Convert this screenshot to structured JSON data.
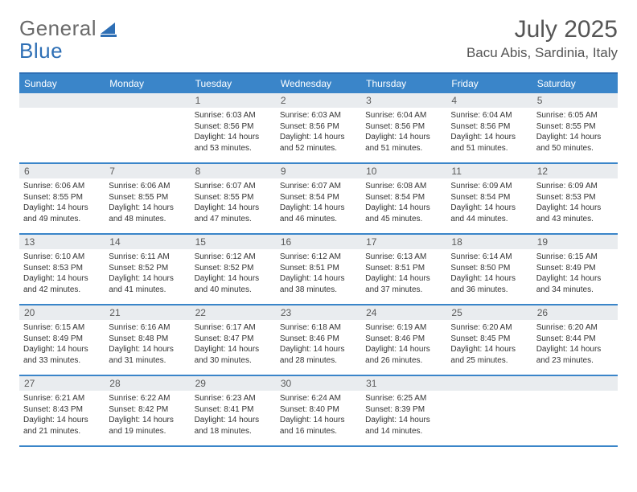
{
  "logo": {
    "word1": "General",
    "word2": "Blue"
  },
  "title": "July 2025",
  "location": "Bacu Abis, Sardinia, Italy",
  "colors": {
    "header_bar": "#3a85c9",
    "border": "#2e6fb5",
    "daynum_bg": "#e9ecef",
    "text": "#333333",
    "muted": "#555555"
  },
  "dow": [
    "Sunday",
    "Monday",
    "Tuesday",
    "Wednesday",
    "Thursday",
    "Friday",
    "Saturday"
  ],
  "weeks": [
    [
      {
        "n": "",
        "sr": "",
        "ss": "",
        "dl": ""
      },
      {
        "n": "",
        "sr": "",
        "ss": "",
        "dl": ""
      },
      {
        "n": "1",
        "sr": "Sunrise: 6:03 AM",
        "ss": "Sunset: 8:56 PM",
        "dl": "Daylight: 14 hours and 53 minutes."
      },
      {
        "n": "2",
        "sr": "Sunrise: 6:03 AM",
        "ss": "Sunset: 8:56 PM",
        "dl": "Daylight: 14 hours and 52 minutes."
      },
      {
        "n": "3",
        "sr": "Sunrise: 6:04 AM",
        "ss": "Sunset: 8:56 PM",
        "dl": "Daylight: 14 hours and 51 minutes."
      },
      {
        "n": "4",
        "sr": "Sunrise: 6:04 AM",
        "ss": "Sunset: 8:56 PM",
        "dl": "Daylight: 14 hours and 51 minutes."
      },
      {
        "n": "5",
        "sr": "Sunrise: 6:05 AM",
        "ss": "Sunset: 8:55 PM",
        "dl": "Daylight: 14 hours and 50 minutes."
      }
    ],
    [
      {
        "n": "6",
        "sr": "Sunrise: 6:06 AM",
        "ss": "Sunset: 8:55 PM",
        "dl": "Daylight: 14 hours and 49 minutes."
      },
      {
        "n": "7",
        "sr": "Sunrise: 6:06 AM",
        "ss": "Sunset: 8:55 PM",
        "dl": "Daylight: 14 hours and 48 minutes."
      },
      {
        "n": "8",
        "sr": "Sunrise: 6:07 AM",
        "ss": "Sunset: 8:55 PM",
        "dl": "Daylight: 14 hours and 47 minutes."
      },
      {
        "n": "9",
        "sr": "Sunrise: 6:07 AM",
        "ss": "Sunset: 8:54 PM",
        "dl": "Daylight: 14 hours and 46 minutes."
      },
      {
        "n": "10",
        "sr": "Sunrise: 6:08 AM",
        "ss": "Sunset: 8:54 PM",
        "dl": "Daylight: 14 hours and 45 minutes."
      },
      {
        "n": "11",
        "sr": "Sunrise: 6:09 AM",
        "ss": "Sunset: 8:54 PM",
        "dl": "Daylight: 14 hours and 44 minutes."
      },
      {
        "n": "12",
        "sr": "Sunrise: 6:09 AM",
        "ss": "Sunset: 8:53 PM",
        "dl": "Daylight: 14 hours and 43 minutes."
      }
    ],
    [
      {
        "n": "13",
        "sr": "Sunrise: 6:10 AM",
        "ss": "Sunset: 8:53 PM",
        "dl": "Daylight: 14 hours and 42 minutes."
      },
      {
        "n": "14",
        "sr": "Sunrise: 6:11 AM",
        "ss": "Sunset: 8:52 PM",
        "dl": "Daylight: 14 hours and 41 minutes."
      },
      {
        "n": "15",
        "sr": "Sunrise: 6:12 AM",
        "ss": "Sunset: 8:52 PM",
        "dl": "Daylight: 14 hours and 40 minutes."
      },
      {
        "n": "16",
        "sr": "Sunrise: 6:12 AM",
        "ss": "Sunset: 8:51 PM",
        "dl": "Daylight: 14 hours and 38 minutes."
      },
      {
        "n": "17",
        "sr": "Sunrise: 6:13 AM",
        "ss": "Sunset: 8:51 PM",
        "dl": "Daylight: 14 hours and 37 minutes."
      },
      {
        "n": "18",
        "sr": "Sunrise: 6:14 AM",
        "ss": "Sunset: 8:50 PM",
        "dl": "Daylight: 14 hours and 36 minutes."
      },
      {
        "n": "19",
        "sr": "Sunrise: 6:15 AM",
        "ss": "Sunset: 8:49 PM",
        "dl": "Daylight: 14 hours and 34 minutes."
      }
    ],
    [
      {
        "n": "20",
        "sr": "Sunrise: 6:15 AM",
        "ss": "Sunset: 8:49 PM",
        "dl": "Daylight: 14 hours and 33 minutes."
      },
      {
        "n": "21",
        "sr": "Sunrise: 6:16 AM",
        "ss": "Sunset: 8:48 PM",
        "dl": "Daylight: 14 hours and 31 minutes."
      },
      {
        "n": "22",
        "sr": "Sunrise: 6:17 AM",
        "ss": "Sunset: 8:47 PM",
        "dl": "Daylight: 14 hours and 30 minutes."
      },
      {
        "n": "23",
        "sr": "Sunrise: 6:18 AM",
        "ss": "Sunset: 8:46 PM",
        "dl": "Daylight: 14 hours and 28 minutes."
      },
      {
        "n": "24",
        "sr": "Sunrise: 6:19 AM",
        "ss": "Sunset: 8:46 PM",
        "dl": "Daylight: 14 hours and 26 minutes."
      },
      {
        "n": "25",
        "sr": "Sunrise: 6:20 AM",
        "ss": "Sunset: 8:45 PM",
        "dl": "Daylight: 14 hours and 25 minutes."
      },
      {
        "n": "26",
        "sr": "Sunrise: 6:20 AM",
        "ss": "Sunset: 8:44 PM",
        "dl": "Daylight: 14 hours and 23 minutes."
      }
    ],
    [
      {
        "n": "27",
        "sr": "Sunrise: 6:21 AM",
        "ss": "Sunset: 8:43 PM",
        "dl": "Daylight: 14 hours and 21 minutes."
      },
      {
        "n": "28",
        "sr": "Sunrise: 6:22 AM",
        "ss": "Sunset: 8:42 PM",
        "dl": "Daylight: 14 hours and 19 minutes."
      },
      {
        "n": "29",
        "sr": "Sunrise: 6:23 AM",
        "ss": "Sunset: 8:41 PM",
        "dl": "Daylight: 14 hours and 18 minutes."
      },
      {
        "n": "30",
        "sr": "Sunrise: 6:24 AM",
        "ss": "Sunset: 8:40 PM",
        "dl": "Daylight: 14 hours and 16 minutes."
      },
      {
        "n": "31",
        "sr": "Sunrise: 6:25 AM",
        "ss": "Sunset: 8:39 PM",
        "dl": "Daylight: 14 hours and 14 minutes."
      },
      {
        "n": "",
        "sr": "",
        "ss": "",
        "dl": ""
      },
      {
        "n": "",
        "sr": "",
        "ss": "",
        "dl": ""
      }
    ]
  ]
}
